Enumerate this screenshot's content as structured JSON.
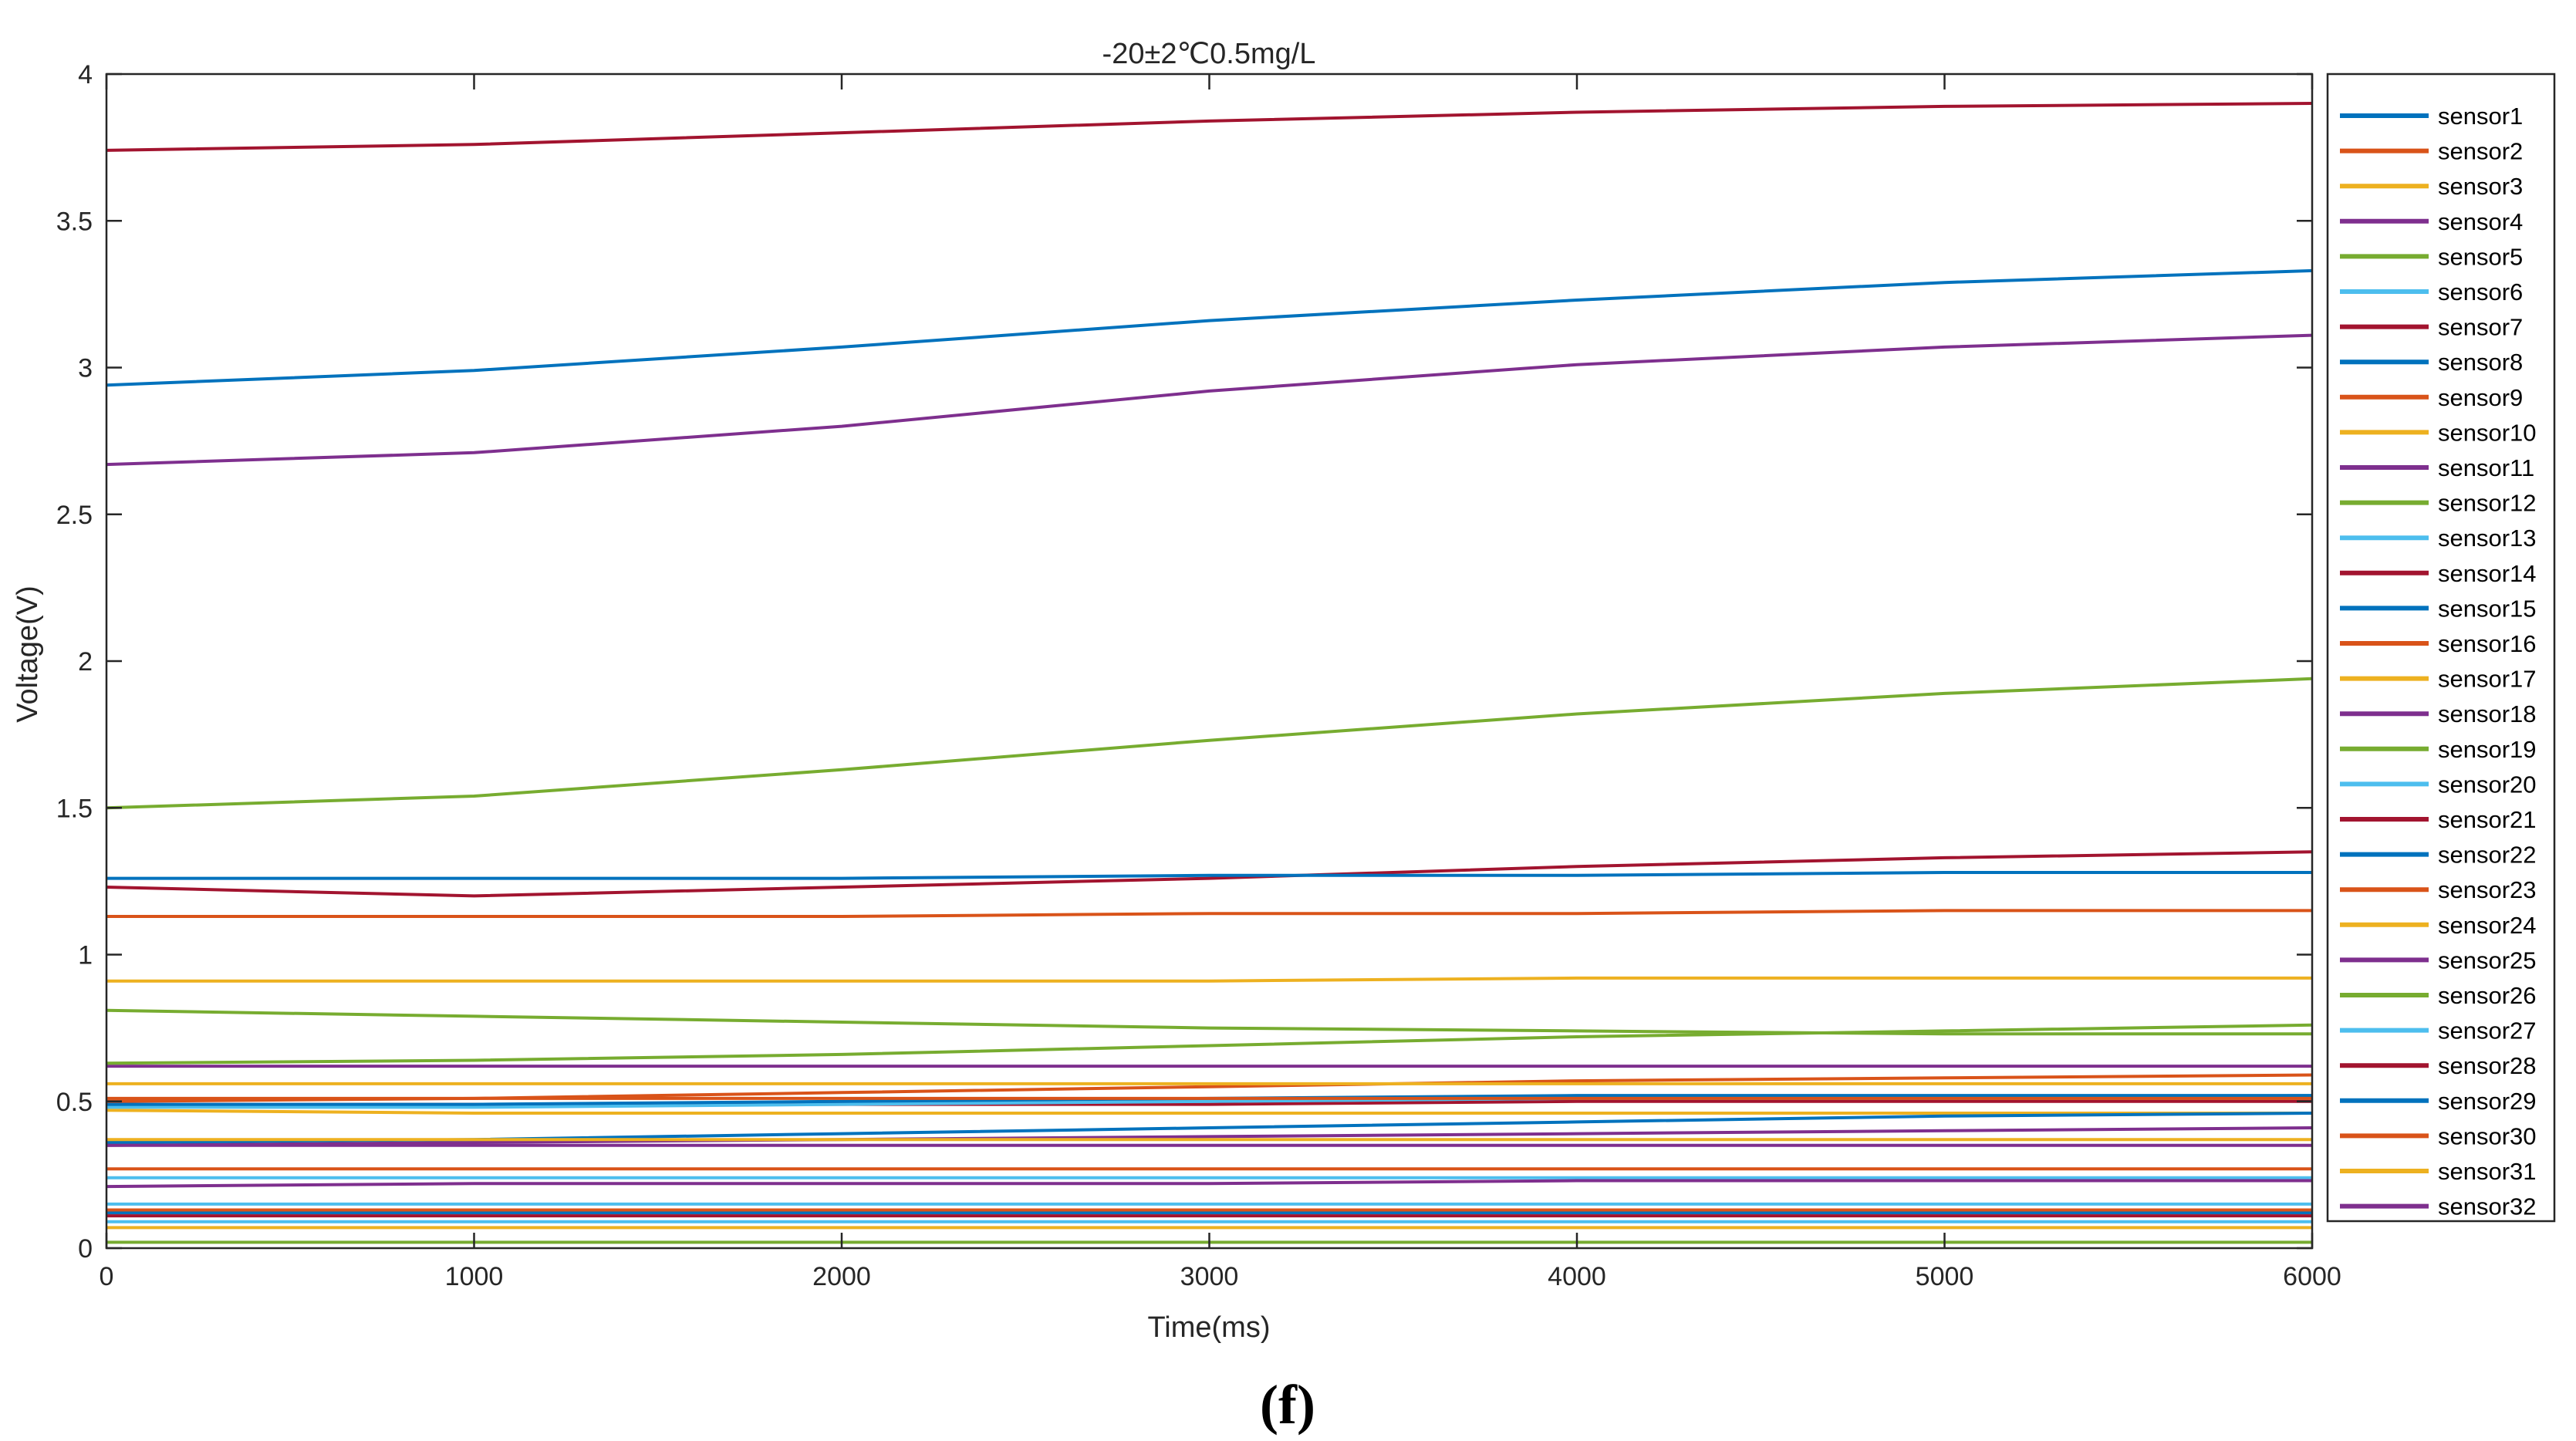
{
  "caption": "(f)",
  "colors": {
    "palette": [
      "#0072BD",
      "#D95319",
      "#EDB120",
      "#7E2F8E",
      "#77AC30",
      "#4DBEEE",
      "#A2142F"
    ]
  },
  "chart_data": {
    "type": "line",
    "title": "-20±2℃0.5mg/L",
    "xlabel": "Time(ms)",
    "ylabel": "Voltage(V)",
    "xlim": [
      0,
      6000
    ],
    "ylim": [
      0,
      4
    ],
    "xticks": [
      0,
      1000,
      2000,
      3000,
      4000,
      5000,
      6000
    ],
    "yticks": [
      0,
      0.5,
      1,
      1.5,
      2,
      2.5,
      3,
      3.5,
      4
    ],
    "ytick_labels": [
      "0",
      "0.5",
      "1",
      "1.5",
      "2",
      "2.5",
      "3",
      "3.5",
      "4"
    ],
    "x": [
      0,
      1000,
      2000,
      3000,
      4000,
      5000,
      6000
    ],
    "grid": false,
    "legend_position": "outside-right",
    "series": [
      {
        "name": "sensor1",
        "values": [
          2.94,
          2.99,
          3.07,
          3.16,
          3.23,
          3.29,
          3.33
        ]
      },
      {
        "name": "sensor2",
        "values": [
          0.5,
          0.51,
          0.53,
          0.55,
          0.57,
          0.58,
          0.59
        ]
      },
      {
        "name": "sensor3",
        "values": [
          0.91,
          0.91,
          0.91,
          0.91,
          0.92,
          0.92,
          0.92
        ]
      },
      {
        "name": "sensor4",
        "values": [
          2.67,
          2.71,
          2.8,
          2.92,
          3.01,
          3.07,
          3.11
        ]
      },
      {
        "name": "sensor5",
        "values": [
          1.5,
          1.54,
          1.63,
          1.73,
          1.82,
          1.89,
          1.94
        ]
      },
      {
        "name": "sensor6",
        "values": [
          0.24,
          0.24,
          0.24,
          0.24,
          0.24,
          0.24,
          0.24
        ]
      },
      {
        "name": "sensor7",
        "values": [
          3.74,
          3.76,
          3.8,
          3.84,
          3.87,
          3.89,
          3.9
        ]
      },
      {
        "name": "sensor8",
        "values": [
          0.12,
          0.12,
          0.12,
          0.12,
          0.12,
          0.12,
          0.12
        ]
      },
      {
        "name": "sensor9",
        "values": [
          0.27,
          0.27,
          0.27,
          0.27,
          0.27,
          0.27,
          0.27
        ]
      },
      {
        "name": "sensor10",
        "values": [
          0.56,
          0.56,
          0.56,
          0.56,
          0.56,
          0.56,
          0.56
        ]
      },
      {
        "name": "sensor11",
        "values": [
          0.35,
          0.36,
          0.37,
          0.38,
          0.39,
          0.4,
          0.41
        ]
      },
      {
        "name": "sensor12",
        "values": [
          0.81,
          0.79,
          0.77,
          0.75,
          0.74,
          0.73,
          0.73
        ]
      },
      {
        "name": "sensor13",
        "values": [
          0.15,
          0.15,
          0.15,
          0.15,
          0.15,
          0.15,
          0.15
        ]
      },
      {
        "name": "sensor14",
        "values": [
          1.23,
          1.2,
          1.23,
          1.26,
          1.3,
          1.33,
          1.35
        ]
      },
      {
        "name": "sensor15",
        "values": [
          1.26,
          1.26,
          1.26,
          1.27,
          1.27,
          1.28,
          1.28
        ]
      },
      {
        "name": "sensor16",
        "values": [
          1.13,
          1.13,
          1.13,
          1.14,
          1.14,
          1.15,
          1.15
        ]
      },
      {
        "name": "sensor17",
        "values": [
          0.47,
          0.46,
          0.46,
          0.46,
          0.46,
          0.46,
          0.46
        ]
      },
      {
        "name": "sensor18",
        "values": [
          0.62,
          0.62,
          0.62,
          0.62,
          0.62,
          0.62,
          0.62
        ]
      },
      {
        "name": "sensor19",
        "values": [
          0.63,
          0.64,
          0.66,
          0.69,
          0.72,
          0.74,
          0.76
        ]
      },
      {
        "name": "sensor20",
        "values": [
          0.09,
          0.09,
          0.09,
          0.09,
          0.09,
          0.09,
          0.09
        ]
      },
      {
        "name": "sensor21",
        "values": [
          0.49,
          0.49,
          0.49,
          0.49,
          0.5,
          0.5,
          0.5
        ]
      },
      {
        "name": "sensor22",
        "values": [
          0.36,
          0.37,
          0.39,
          0.41,
          0.43,
          0.45,
          0.46
        ]
      },
      {
        "name": "sensor23",
        "values": [
          0.13,
          0.13,
          0.13,
          0.13,
          0.13,
          0.13,
          0.13
        ]
      },
      {
        "name": "sensor24",
        "values": [
          0.07,
          0.07,
          0.07,
          0.07,
          0.07,
          0.07,
          0.07
        ]
      },
      {
        "name": "sensor25",
        "values": [
          0.21,
          0.22,
          0.22,
          0.22,
          0.23,
          0.23,
          0.23
        ]
      },
      {
        "name": "sensor26",
        "values": [
          0.02,
          0.02,
          0.02,
          0.02,
          0.02,
          0.02,
          0.02
        ]
      },
      {
        "name": "sensor27",
        "values": [
          0.48,
          0.48,
          0.49,
          0.5,
          0.51,
          0.51,
          0.52
        ]
      },
      {
        "name": "sensor28",
        "values": [
          0.11,
          0.11,
          0.11,
          0.11,
          0.11,
          0.11,
          0.11
        ]
      },
      {
        "name": "sensor29",
        "values": [
          0.49,
          0.49,
          0.5,
          0.51,
          0.52,
          0.52,
          0.52
        ]
      },
      {
        "name": "sensor30",
        "values": [
          0.51,
          0.51,
          0.51,
          0.51,
          0.51,
          0.51,
          0.51
        ]
      },
      {
        "name": "sensor31",
        "values": [
          0.37,
          0.37,
          0.37,
          0.37,
          0.37,
          0.37,
          0.37
        ]
      },
      {
        "name": "sensor32",
        "values": [
          0.35,
          0.35,
          0.35,
          0.35,
          0.35,
          0.35,
          0.35
        ]
      }
    ]
  }
}
